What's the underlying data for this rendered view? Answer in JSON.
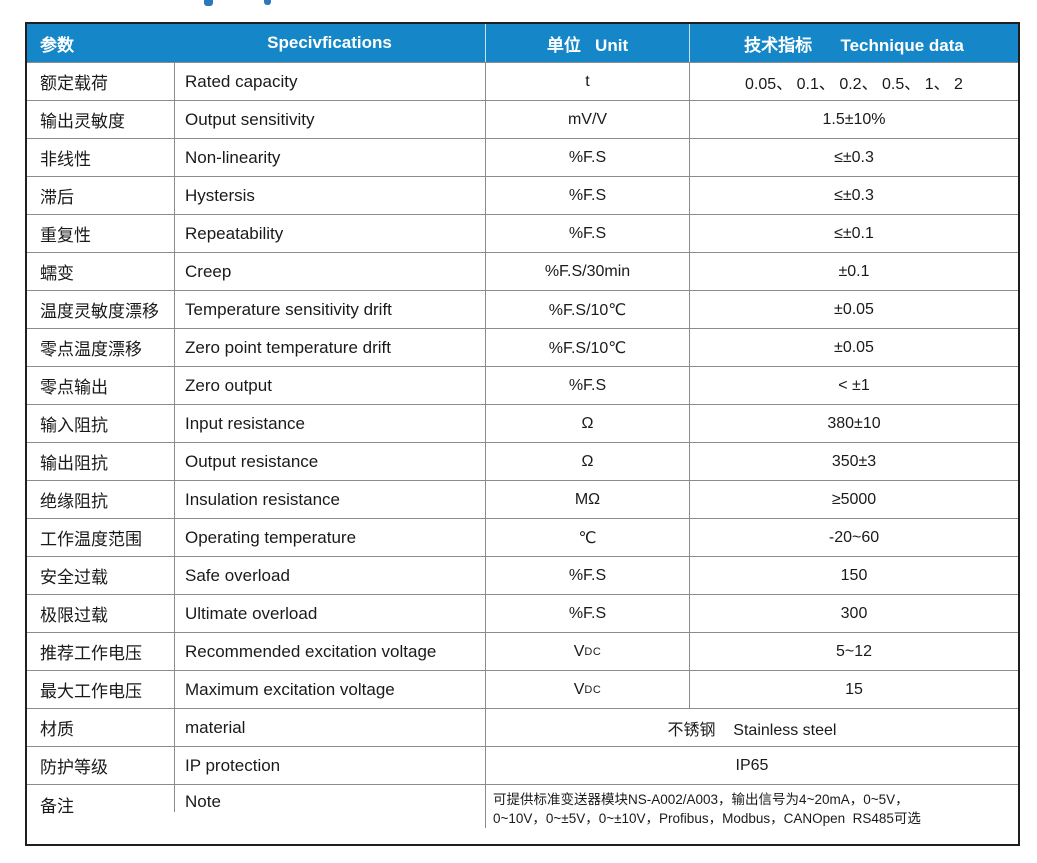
{
  "page": {
    "background": "#ffffff"
  },
  "artifact": {
    "description": "cropped blue title remnants at top edge",
    "color": "#2e77bd"
  },
  "table": {
    "header": {
      "bg_color": "#1587c8",
      "text_color": "#ffffff",
      "col_param": "参数",
      "col_spec": "Specivfications",
      "col_unit": "单位   Unit",
      "col_data": "技术指标      Technique data"
    },
    "grid_color": "#8c8c8c",
    "outer_border_color": "#1f1f1f",
    "rows": [
      {
        "param": "额定载荷",
        "spec": "Rated capacity",
        "unit": "t",
        "value": "0.05、 0.1、 0.2、 0.5、 1、 2"
      },
      {
        "param": "输出灵敏度",
        "spec": "Output sensitivity",
        "unit": "mV/V",
        "value": "1.5±10%"
      },
      {
        "param": "非线性",
        "spec": "Non-linearity",
        "unit": "%F.S",
        "value": "≤±0.3"
      },
      {
        "param": "滞后",
        "spec": "Hystersis",
        "unit": "%F.S",
        "value": "≤±0.3"
      },
      {
        "param": "重复性",
        "spec": "Repeatability",
        "unit": "%F.S",
        "value": "≤±0.1"
      },
      {
        "param": "蠕变",
        "spec": "Creep",
        "unit": "%F.S/30min",
        "value": "±0.1"
      },
      {
        "param": "温度灵敏度漂移",
        "spec": "Temperature sensitivity drift",
        "unit": "%F.S/10℃",
        "value": "±0.05"
      },
      {
        "param": "零点温度漂移",
        "spec": "Zero point temperature drift",
        "unit": "%F.S/10℃",
        "value": "±0.05"
      },
      {
        "param": "零点输出",
        "spec": "Zero output",
        "unit": "%F.S",
        "value": "< ±1"
      },
      {
        "param": "输入阻抗",
        "spec": "Input resistance",
        "unit": "Ω",
        "value": "380±10"
      },
      {
        "param": "输出阻抗",
        "spec": "Output resistance",
        "unit": "Ω",
        "value": "350±3"
      },
      {
        "param": "绝缘阻抗",
        "spec": "Insulation resistance",
        "unit": "MΩ",
        "value": "≥5000"
      },
      {
        "param": "工作温度范围",
        "spec": "Operating temperature",
        "unit": "℃",
        "value": "-20~60"
      },
      {
        "param": "安全过载",
        "spec": "Safe overload",
        "unit": "%F.S",
        "value": "150"
      },
      {
        "param": "极限过载",
        "spec": "Ultimate overload",
        "unit": "%F.S",
        "value": "300"
      },
      {
        "param": "推荐工作电压",
        "spec": "Recommended excitation voltage",
        "unit": {
          "base": "V",
          "small": "DC"
        },
        "value": "5~12"
      },
      {
        "param": "最大工作电压",
        "spec": "Maximum excitation voltage",
        "unit": {
          "base": "V",
          "small": "DC"
        },
        "value": "15"
      },
      {
        "param": "材质",
        "spec": "material",
        "merged": true,
        "value": "不锈钢    Stainless steel"
      },
      {
        "param": "防护等级",
        "spec": "IP protection",
        "merged": true,
        "value": "IP65"
      },
      {
        "param": "备注",
        "spec": "Note",
        "merged": true,
        "note": true,
        "value_lines": [
          "可提供标准变送器模块NS-A002/A003，输出信号为4~20mA，0~5V，",
          "0~10V，0~±5V，0~±10V，Profibus，Modbus，CANOpen  RS485可选"
        ]
      }
    ]
  }
}
